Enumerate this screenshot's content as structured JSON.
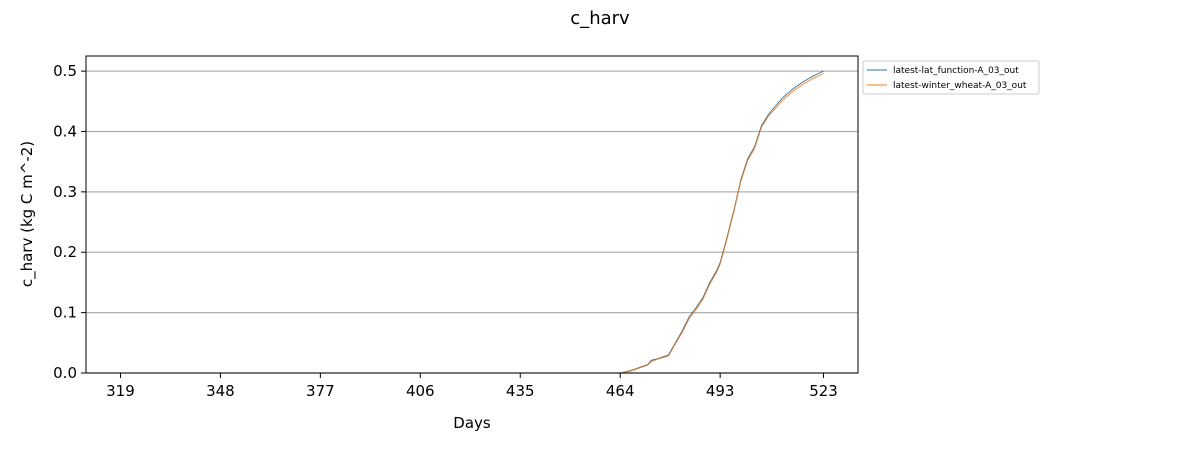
{
  "chart_data": {
    "type": "line",
    "title": "c_harv",
    "xlabel": "Days",
    "ylabel": "c_harv (kg C m^-2)",
    "xlim": [
      309,
      533
    ],
    "ylim": [
      0,
      0.525
    ],
    "xticks": [
      319,
      348,
      377,
      406,
      435,
      464,
      493,
      523
    ],
    "xtick_labels": [
      "319",
      "348",
      "377",
      "406",
      "435",
      "464",
      "493",
      "523"
    ],
    "yticks": [
      0.0,
      0.1,
      0.2,
      0.3,
      0.4,
      0.5
    ],
    "ytick_labels": [
      "0.0",
      "0.1",
      "0.2",
      "0.3",
      "0.4",
      "0.5"
    ],
    "grid": "y",
    "legend_position": "outside-top-right",
    "series": [
      {
        "name": "latest-lat_function-A_03_out",
        "color": "#1f77b4",
        "x": [
          319,
          440,
          464,
          467,
          470,
          472,
          473,
          475,
          478,
          480,
          482,
          484,
          486,
          488,
          490,
          492,
          493,
          495,
          497,
          499,
          501,
          503,
          505,
          507,
          509,
          511,
          514,
          517,
          520,
          523
        ],
        "y": [
          0.0,
          0.0,
          0.0,
          0.004,
          0.01,
          0.014,
          0.021,
          0.024,
          0.03,
          0.05,
          0.07,
          0.093,
          0.108,
          0.125,
          0.15,
          0.17,
          0.183,
          0.225,
          0.27,
          0.32,
          0.355,
          0.375,
          0.41,
          0.428,
          0.442,
          0.455,
          0.47,
          0.482,
          0.492,
          0.5
        ]
      },
      {
        "name": "latest-winter_wheat-A_03_out",
        "color": "#ff7f0e",
        "x": [
          319,
          440,
          464,
          467,
          470,
          472,
          473,
          475,
          478,
          480,
          482,
          484,
          486,
          488,
          490,
          492,
          493,
          495,
          497,
          499,
          501,
          503,
          505,
          507,
          509,
          511,
          514,
          517,
          520,
          523
        ],
        "y": [
          0.0,
          0.0,
          0.0,
          0.003,
          0.009,
          0.013,
          0.019,
          0.023,
          0.028,
          0.048,
          0.067,
          0.09,
          0.105,
          0.122,
          0.147,
          0.167,
          0.18,
          0.222,
          0.267,
          0.317,
          0.352,
          0.372,
          0.407,
          0.425,
          0.438,
          0.451,
          0.466,
          0.478,
          0.488,
          0.496
        ]
      }
    ]
  }
}
